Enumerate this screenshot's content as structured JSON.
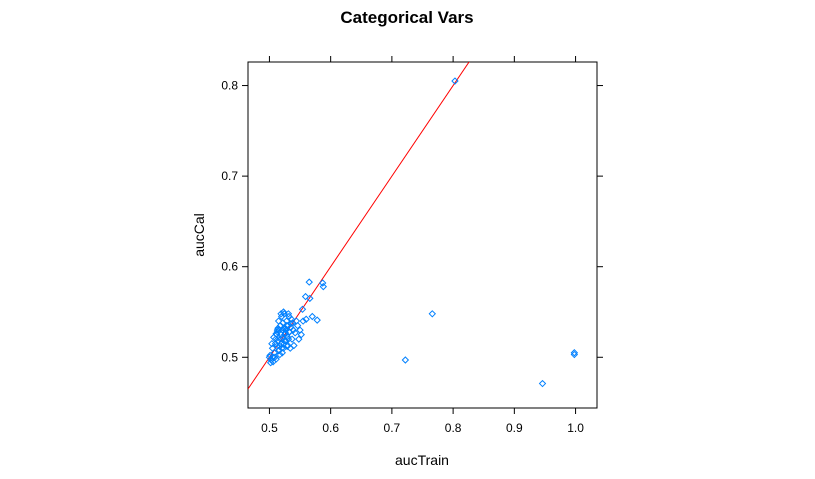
{
  "chart_data": {
    "type": "scatter",
    "title": "Categorical Vars",
    "xlabel": "aucTrain",
    "ylabel": "aucCal",
    "xlim": [
      0.465,
      1.035
    ],
    "ylim": [
      0.444,
      0.826
    ],
    "xticks": [
      0.5,
      0.6,
      0.7,
      0.8,
      0.9,
      1.0
    ],
    "xtick_labels": [
      "0.5",
      "0.6",
      "0.7",
      "0.8",
      "0.9",
      "1.0"
    ],
    "yticks": [
      0.5,
      0.6,
      0.7,
      0.8
    ],
    "ytick_labels": [
      "0.5",
      "0.6",
      "0.7",
      "0.8"
    ],
    "grid": false,
    "reference_line": {
      "slope": 1,
      "intercept": 0,
      "color": "#ff0000"
    },
    "point_color": "#0080ff",
    "marker": "open-diamond",
    "x": [
      0.803,
      0.565,
      0.587,
      0.588,
      0.559,
      0.566,
      0.554,
      0.57,
      0.578,
      0.56,
      0.555,
      0.766,
      0.722,
      0.998,
      0.998,
      0.946,
      0.501,
      0.503,
      0.505,
      0.506,
      0.508,
      0.51,
      0.511,
      0.512,
      0.513,
      0.514,
      0.515,
      0.516,
      0.517,
      0.518,
      0.519,
      0.52,
      0.521,
      0.522,
      0.523,
      0.524,
      0.525,
      0.526,
      0.527,
      0.528,
      0.529,
      0.53,
      0.531,
      0.532,
      0.533,
      0.534,
      0.535,
      0.536,
      0.537,
      0.538,
      0.54,
      0.542,
      0.544,
      0.546,
      0.548,
      0.55,
      0.552,
      0.504,
      0.507,
      0.509,
      0.512,
      0.514,
      0.516,
      0.518,
      0.52,
      0.522,
      0.524,
      0.526,
      0.528,
      0.53,
      0.532,
      0.515,
      0.517,
      0.519,
      0.521,
      0.523,
      0.525,
      0.527,
      0.529,
      0.511,
      0.513,
      0.519,
      0.523,
      0.531,
      0.535,
      0.539,
      0.5,
      0.502,
      0.506,
      0.51
    ],
    "y": [
      0.805,
      0.583,
      0.582,
      0.578,
      0.567,
      0.565,
      0.553,
      0.545,
      0.541,
      0.542,
      0.54,
      0.548,
      0.497,
      0.505,
      0.503,
      0.471,
      0.502,
      0.497,
      0.51,
      0.495,
      0.505,
      0.52,
      0.498,
      0.512,
      0.528,
      0.518,
      0.507,
      0.53,
      0.503,
      0.535,
      0.515,
      0.545,
      0.522,
      0.538,
      0.51,
      0.548,
      0.525,
      0.532,
      0.518,
      0.54,
      0.512,
      0.535,
      0.52,
      0.545,
      0.528,
      0.51,
      0.533,
      0.542,
      0.52,
      0.538,
      0.513,
      0.527,
      0.54,
      0.535,
      0.52,
      0.53,
      0.525,
      0.515,
      0.522,
      0.5,
      0.525,
      0.532,
      0.508,
      0.52,
      0.51,
      0.53,
      0.515,
      0.527,
      0.535,
      0.513,
      0.528,
      0.54,
      0.512,
      0.525,
      0.505,
      0.532,
      0.518,
      0.53,
      0.523,
      0.526,
      0.53,
      0.548,
      0.55,
      0.548,
      0.537,
      0.53,
      0.5,
      0.494,
      0.5,
      0.515
    ]
  }
}
